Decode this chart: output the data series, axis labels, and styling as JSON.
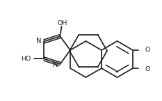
{
  "bg": "#ffffff",
  "lc": "#222222",
  "lw": 1.25,
  "fs": 6.8,
  "figsize": [
    2.33,
    1.45
  ],
  "dpi": 100,
  "xlim": [
    0,
    233
  ],
  "ylim": [
    0,
    145
  ]
}
